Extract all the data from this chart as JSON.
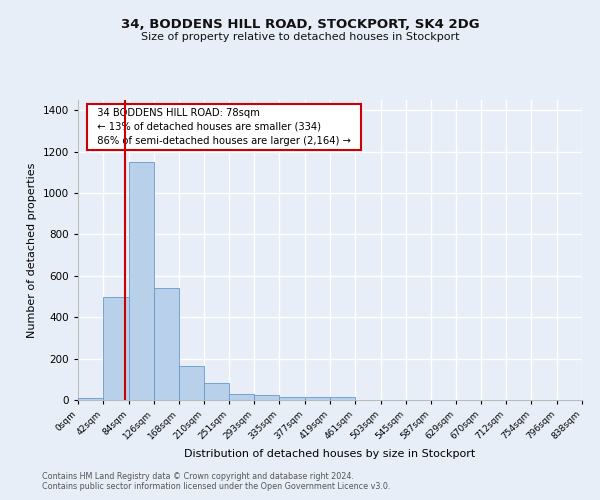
{
  "title": "34, BODDENS HILL ROAD, STOCKPORT, SK4 2DG",
  "subtitle": "Size of property relative to detached houses in Stockport",
  "xlabel": "Distribution of detached houses by size in Stockport",
  "ylabel": "Number of detached properties",
  "footnote1": "Contains HM Land Registry data © Crown copyright and database right 2024.",
  "footnote2": "Contains public sector information licensed under the Open Government Licence v3.0.",
  "bin_edges": [
    0,
    42,
    84,
    126,
    168,
    210,
    251,
    293,
    335,
    377,
    419,
    461,
    503,
    545,
    587,
    629,
    670,
    712,
    754,
    796,
    838
  ],
  "bar_heights": [
    10,
    500,
    1150,
    540,
    165,
    80,
    30,
    25,
    15,
    15,
    15,
    0,
    0,
    0,
    0,
    0,
    0,
    0,
    0,
    0
  ],
  "bar_color": "#b8d0ea",
  "bar_edge_color": "#6699cc",
  "red_line_x": 78,
  "red_line_color": "#cc0000",
  "ylim": [
    0,
    1450
  ],
  "yticks": [
    0,
    200,
    400,
    600,
    800,
    1000,
    1200,
    1400
  ],
  "annotation_text": "  34 BODDENS HILL ROAD: 78sqm  \n  ← 13% of detached houses are smaller (334)  \n  86% of semi-detached houses are larger (2,164) →  ",
  "bg_color": "#e8eef8",
  "grid_color": "#ffffff",
  "tick_labels": [
    "0sqm",
    "42sqm",
    "84sqm",
    "126sqm",
    "168sqm",
    "210sqm",
    "251sqm",
    "293sqm",
    "335sqm",
    "377sqm",
    "419sqm",
    "461sqm",
    "503sqm",
    "545sqm",
    "587sqm",
    "629sqm",
    "670sqm",
    "712sqm",
    "754sqm",
    "796sqm",
    "838sqm"
  ]
}
